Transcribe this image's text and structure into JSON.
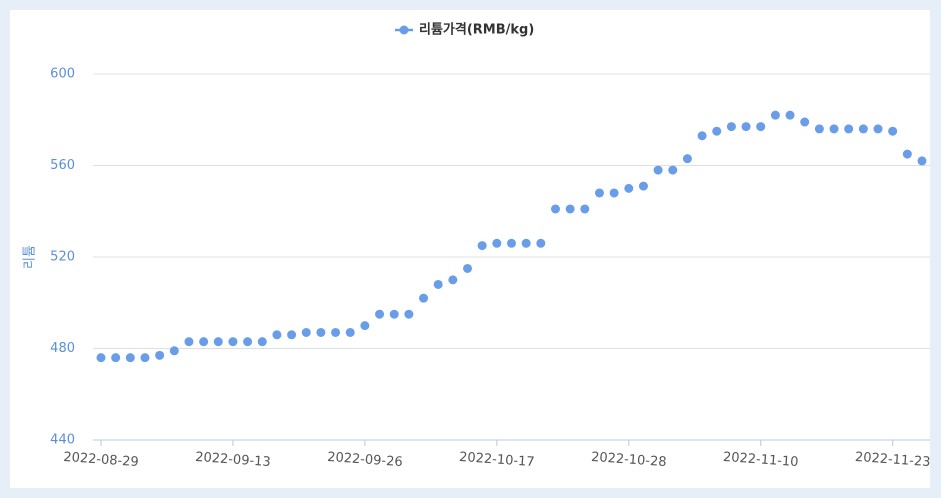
{
  "chart_data": {
    "type": "line",
    "legend": "top",
    "ylabel": "리튬",
    "categories": [
      "2022-08-29",
      null,
      null,
      null,
      null,
      null,
      null,
      null,
      null,
      "2022-09-13",
      null,
      null,
      null,
      null,
      null,
      null,
      null,
      null,
      "2022-09-26",
      null,
      null,
      null,
      null,
      null,
      null,
      null,
      null,
      "2022-10-17",
      null,
      null,
      null,
      null,
      null,
      null,
      null,
      null,
      "2022-10-28",
      null,
      null,
      null,
      null,
      null,
      null,
      null,
      null,
      "2022-11-10",
      null,
      null,
      null,
      null,
      null,
      null,
      null,
      null,
      "2022-11-23",
      null,
      null
    ],
    "series": [
      {
        "name": "리튬가격(RMB/kg)",
        "color": "#6a9de8",
        "values": [
          476,
          476,
          476,
          476,
          477,
          479,
          483,
          483,
          483,
          483,
          483,
          483,
          486,
          486,
          487,
          487,
          487,
          487,
          490,
          495,
          495,
          495,
          502,
          508,
          510,
          515,
          525,
          526,
          526,
          526,
          526,
          541,
          541,
          541,
          548,
          548,
          550,
          551,
          558,
          558,
          563,
          573,
          575,
          577,
          577,
          577,
          582,
          582,
          579,
          576,
          576,
          576,
          576,
          576,
          575,
          565,
          562
        ]
      }
    ],
    "ylim": [
      440,
      600
    ],
    "yticks": [
      440,
      480,
      520,
      560,
      600
    ],
    "grid": true
  }
}
